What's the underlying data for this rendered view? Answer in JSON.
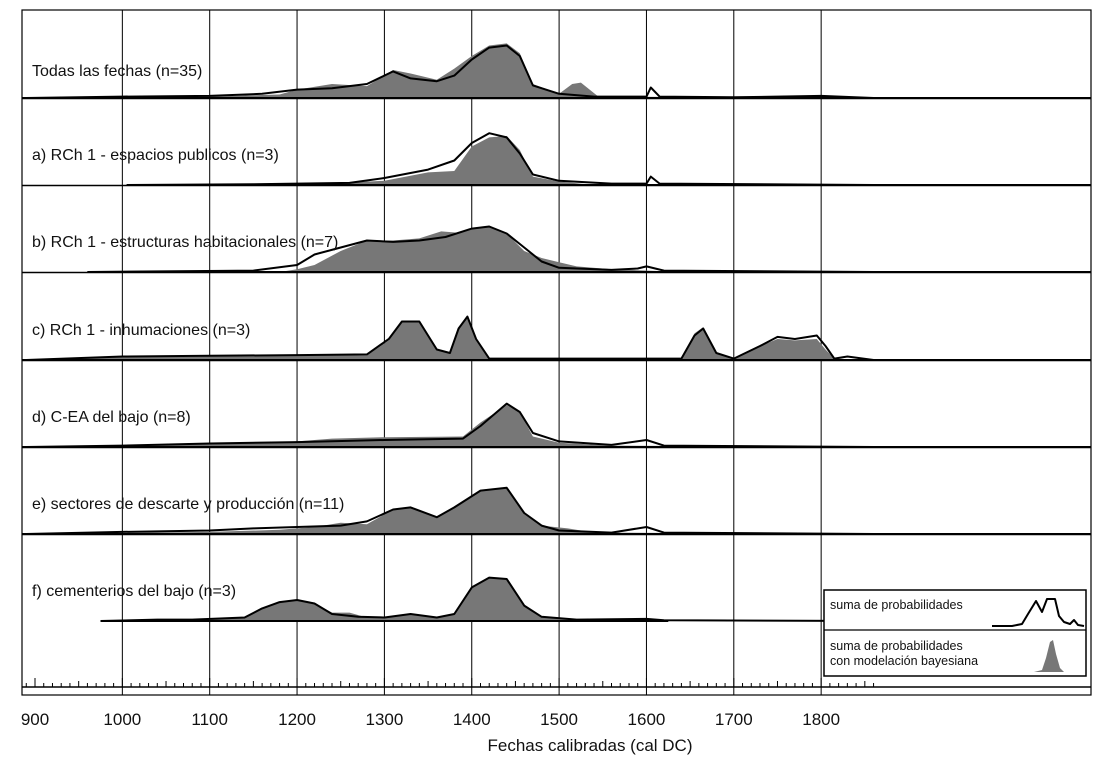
{
  "chart_data": {
    "type": "area",
    "xlabel": "Fechas calibradas (cal DC)",
    "xlim": [
      890,
      1860
    ],
    "x_ticks": [
      900,
      1000,
      1100,
      1200,
      1300,
      1400,
      1500,
      1600,
      1700,
      1800
    ],
    "legend": {
      "position": "bottom-right",
      "items": [
        {
          "label": "suma de probabilidades",
          "style": "line"
        },
        {
          "label": "suma de probabilidades con modelación bayesiana",
          "lines": [
            "suma de probabilidades",
            "con modelación bayesiana"
          ],
          "style": "filled"
        }
      ]
    },
    "colors": {
      "sum_line": "#000000",
      "bayesian_fill": "#777777"
    },
    "panels": [
      {
        "label": "Todas las fechas (n=35)",
        "x_start": 890,
        "sum": [
          [
            890,
            0
          ],
          [
            1000,
            0.02
          ],
          [
            1100,
            0.03
          ],
          [
            1160,
            0.06
          ],
          [
            1200,
            0.12
          ],
          [
            1240,
            0.14
          ],
          [
            1280,
            0.2
          ],
          [
            1310,
            0.38
          ],
          [
            1330,
            0.28
          ],
          [
            1360,
            0.24
          ],
          [
            1380,
            0.32
          ],
          [
            1400,
            0.55
          ],
          [
            1420,
            0.72
          ],
          [
            1440,
            0.75
          ],
          [
            1455,
            0.6
          ],
          [
            1470,
            0.18
          ],
          [
            1500,
            0.06
          ],
          [
            1540,
            0.02
          ],
          [
            1600,
            0.02
          ],
          [
            1605,
            0.15
          ],
          [
            1615,
            0.02
          ],
          [
            1700,
            0.01
          ],
          [
            1800,
            0.03
          ],
          [
            1860,
            0
          ]
        ],
        "model": [
          [
            890,
            0
          ],
          [
            1100,
            0.02
          ],
          [
            1180,
            0.05
          ],
          [
            1200,
            0.12
          ],
          [
            1240,
            0.2
          ],
          [
            1280,
            0.17
          ],
          [
            1310,
            0.4
          ],
          [
            1330,
            0.35
          ],
          [
            1360,
            0.26
          ],
          [
            1380,
            0.42
          ],
          [
            1400,
            0.6
          ],
          [
            1420,
            0.75
          ],
          [
            1440,
            0.78
          ],
          [
            1455,
            0.64
          ],
          [
            1470,
            0.2
          ],
          [
            1500,
            0.06
          ],
          [
            1515,
            0.2
          ],
          [
            1525,
            0.22
          ],
          [
            1545,
            0.02
          ],
          [
            1860,
            0
          ]
        ]
      },
      {
        "label": "a) RCh 1 - espacios publicos (n=3)",
        "x_start": 1005,
        "sum": [
          [
            1005,
            0
          ],
          [
            1150,
            0.01
          ],
          [
            1260,
            0.03
          ],
          [
            1300,
            0.1
          ],
          [
            1350,
            0.22
          ],
          [
            1380,
            0.35
          ],
          [
            1400,
            0.6
          ],
          [
            1420,
            0.74
          ],
          [
            1440,
            0.68
          ],
          [
            1455,
            0.45
          ],
          [
            1470,
            0.15
          ],
          [
            1500,
            0.06
          ],
          [
            1560,
            0.02
          ],
          [
            1600,
            0.02
          ],
          [
            1605,
            0.12
          ],
          [
            1615,
            0.02
          ],
          [
            1860,
            0
          ]
        ],
        "model": [
          [
            1005,
            0
          ],
          [
            1200,
            0
          ],
          [
            1300,
            0.06
          ],
          [
            1350,
            0.18
          ],
          [
            1380,
            0.2
          ],
          [
            1400,
            0.55
          ],
          [
            1420,
            0.68
          ],
          [
            1440,
            0.7
          ],
          [
            1455,
            0.5
          ],
          [
            1470,
            0.12
          ],
          [
            1500,
            0.05
          ],
          [
            1540,
            0
          ],
          [
            1860,
            0
          ]
        ]
      },
      {
        "label": "b) RCh 1 - estructuras habitacionales (n=7)",
        "x_start": 960,
        "sum": [
          [
            960,
            0
          ],
          [
            1150,
            0.02
          ],
          [
            1200,
            0.1
          ],
          [
            1220,
            0.25
          ],
          [
            1250,
            0.35
          ],
          [
            1280,
            0.45
          ],
          [
            1310,
            0.43
          ],
          [
            1340,
            0.45
          ],
          [
            1370,
            0.5
          ],
          [
            1400,
            0.62
          ],
          [
            1420,
            0.65
          ],
          [
            1440,
            0.55
          ],
          [
            1460,
            0.35
          ],
          [
            1480,
            0.15
          ],
          [
            1500,
            0.06
          ],
          [
            1560,
            0.03
          ],
          [
            1590,
            0.05
          ],
          [
            1600,
            0.08
          ],
          [
            1620,
            0.02
          ],
          [
            1860,
            0
          ]
        ],
        "model": [
          [
            960,
            0
          ],
          [
            1180,
            0
          ],
          [
            1200,
            0.04
          ],
          [
            1220,
            0.1
          ],
          [
            1250,
            0.3
          ],
          [
            1280,
            0.45
          ],
          [
            1310,
            0.45
          ],
          [
            1340,
            0.48
          ],
          [
            1365,
            0.58
          ],
          [
            1385,
            0.56
          ],
          [
            1400,
            0.62
          ],
          [
            1420,
            0.65
          ],
          [
            1440,
            0.55
          ],
          [
            1460,
            0.3
          ],
          [
            1480,
            0.2
          ],
          [
            1500,
            0.14
          ],
          [
            1520,
            0.08
          ],
          [
            1560,
            0.04
          ],
          [
            1620,
            0.01
          ],
          [
            1860,
            0
          ]
        ]
      },
      {
        "label": "c) RCh 1 - inhumaciones (n=3)",
        "x_start": 890,
        "sum": [
          [
            890,
            0
          ],
          [
            1000,
            0.05
          ],
          [
            1100,
            0.06
          ],
          [
            1200,
            0.07
          ],
          [
            1280,
            0.08
          ],
          [
            1305,
            0.3
          ],
          [
            1320,
            0.55
          ],
          [
            1340,
            0.55
          ],
          [
            1360,
            0.15
          ],
          [
            1375,
            0.1
          ],
          [
            1385,
            0.45
          ],
          [
            1395,
            0.62
          ],
          [
            1405,
            0.3
          ],
          [
            1420,
            0.02
          ],
          [
            1640,
            0.02
          ],
          [
            1655,
            0.35
          ],
          [
            1665,
            0.45
          ],
          [
            1680,
            0.1
          ],
          [
            1700,
            0.02
          ],
          [
            1730,
            0.2
          ],
          [
            1750,
            0.33
          ],
          [
            1770,
            0.3
          ],
          [
            1795,
            0.35
          ],
          [
            1805,
            0.2
          ],
          [
            1815,
            0.02
          ],
          [
            1830,
            0.05
          ],
          [
            1860,
            0
          ]
        ],
        "model": [
          [
            890,
            0
          ],
          [
            1000,
            0.04
          ],
          [
            1100,
            0.05
          ],
          [
            1200,
            0.06
          ],
          [
            1280,
            0.07
          ],
          [
            1305,
            0.28
          ],
          [
            1320,
            0.55
          ],
          [
            1340,
            0.55
          ],
          [
            1360,
            0.15
          ],
          [
            1375,
            0.1
          ],
          [
            1385,
            0.45
          ],
          [
            1395,
            0.62
          ],
          [
            1405,
            0.3
          ],
          [
            1420,
            0.02
          ],
          [
            1640,
            0.02
          ],
          [
            1655,
            0.38
          ],
          [
            1665,
            0.47
          ],
          [
            1680,
            0.1
          ],
          [
            1700,
            0.02
          ],
          [
            1730,
            0.2
          ],
          [
            1750,
            0.3
          ],
          [
            1770,
            0.28
          ],
          [
            1795,
            0.3
          ],
          [
            1805,
            0.15
          ],
          [
            1815,
            0.02
          ],
          [
            1860,
            0
          ]
        ]
      },
      {
        "label": "d) C-EA del bajo (n=8)",
        "x_start": 890,
        "sum": [
          [
            890,
            0
          ],
          [
            1000,
            0.02
          ],
          [
            1100,
            0.05
          ],
          [
            1200,
            0.07
          ],
          [
            1300,
            0.1
          ],
          [
            1390,
            0.12
          ],
          [
            1410,
            0.3
          ],
          [
            1440,
            0.62
          ],
          [
            1455,
            0.5
          ],
          [
            1470,
            0.2
          ],
          [
            1500,
            0.08
          ],
          [
            1560,
            0.03
          ],
          [
            1600,
            0.1
          ],
          [
            1620,
            0.02
          ],
          [
            1860,
            0
          ]
        ],
        "model": [
          [
            890,
            0
          ],
          [
            1000,
            0.02
          ],
          [
            1100,
            0.04
          ],
          [
            1200,
            0.08
          ],
          [
            1240,
            0.12
          ],
          [
            1300,
            0.14
          ],
          [
            1390,
            0.15
          ],
          [
            1410,
            0.35
          ],
          [
            1440,
            0.6
          ],
          [
            1455,
            0.5
          ],
          [
            1470,
            0.15
          ],
          [
            1500,
            0.06
          ],
          [
            1560,
            0.02
          ],
          [
            1860,
            0
          ]
        ]
      },
      {
        "label": "e) sectores de descarte y producción (n=11)",
        "x_start": 890,
        "sum": [
          [
            890,
            0
          ],
          [
            1000,
            0.03
          ],
          [
            1100,
            0.05
          ],
          [
            1150,
            0.08
          ],
          [
            1200,
            0.1
          ],
          [
            1250,
            0.12
          ],
          [
            1280,
            0.18
          ],
          [
            1310,
            0.35
          ],
          [
            1330,
            0.38
          ],
          [
            1360,
            0.24
          ],
          [
            1380,
            0.38
          ],
          [
            1410,
            0.62
          ],
          [
            1440,
            0.66
          ],
          [
            1460,
            0.3
          ],
          [
            1480,
            0.12
          ],
          [
            1500,
            0.05
          ],
          [
            1560,
            0.02
          ],
          [
            1600,
            0.1
          ],
          [
            1620,
            0.02
          ],
          [
            1860,
            0
          ]
        ],
        "model": [
          [
            890,
            0
          ],
          [
            1100,
            0.03
          ],
          [
            1180,
            0.06
          ],
          [
            1220,
            0.1
          ],
          [
            1250,
            0.16
          ],
          [
            1280,
            0.14
          ],
          [
            1310,
            0.35
          ],
          [
            1330,
            0.38
          ],
          [
            1360,
            0.24
          ],
          [
            1380,
            0.38
          ],
          [
            1410,
            0.62
          ],
          [
            1440,
            0.66
          ],
          [
            1460,
            0.3
          ],
          [
            1480,
            0.12
          ],
          [
            1510,
            0.08
          ],
          [
            1540,
            0.02
          ],
          [
            1860,
            0
          ]
        ]
      },
      {
        "label": "f) cementerios del bajo (n=3)",
        "x_start": 975,
        "sum": [
          [
            975,
            0
          ],
          [
            1040,
            0.02
          ],
          [
            1080,
            0.02
          ],
          [
            1140,
            0.05
          ],
          [
            1160,
            0.18
          ],
          [
            1180,
            0.27
          ],
          [
            1200,
            0.3
          ],
          [
            1220,
            0.25
          ],
          [
            1240,
            0.1
          ],
          [
            1270,
            0.06
          ],
          [
            1300,
            0.05
          ],
          [
            1330,
            0.1
          ],
          [
            1360,
            0.05
          ],
          [
            1380,
            0.1
          ],
          [
            1400,
            0.48
          ],
          [
            1420,
            0.62
          ],
          [
            1440,
            0.6
          ],
          [
            1460,
            0.22
          ],
          [
            1480,
            0.06
          ],
          [
            1520,
            0.02
          ],
          [
            1600,
            0.03
          ],
          [
            1620,
            0.01
          ],
          [
            1860,
            0
          ]
        ],
        "model": [
          [
            975,
            0
          ],
          [
            1040,
            0.01
          ],
          [
            1100,
            0.02
          ],
          [
            1140,
            0.05
          ],
          [
            1160,
            0.17
          ],
          [
            1180,
            0.27
          ],
          [
            1200,
            0.29
          ],
          [
            1220,
            0.25
          ],
          [
            1240,
            0.12
          ],
          [
            1260,
            0.12
          ],
          [
            1280,
            0.05
          ],
          [
            1300,
            0.05
          ],
          [
            1330,
            0.1
          ],
          [
            1360,
            0.05
          ],
          [
            1380,
            0.1
          ],
          [
            1400,
            0.48
          ],
          [
            1420,
            0.62
          ],
          [
            1440,
            0.6
          ],
          [
            1460,
            0.22
          ],
          [
            1480,
            0.06
          ],
          [
            1520,
            0.02
          ],
          [
            1860,
            0
          ]
        ]
      }
    ]
  }
}
